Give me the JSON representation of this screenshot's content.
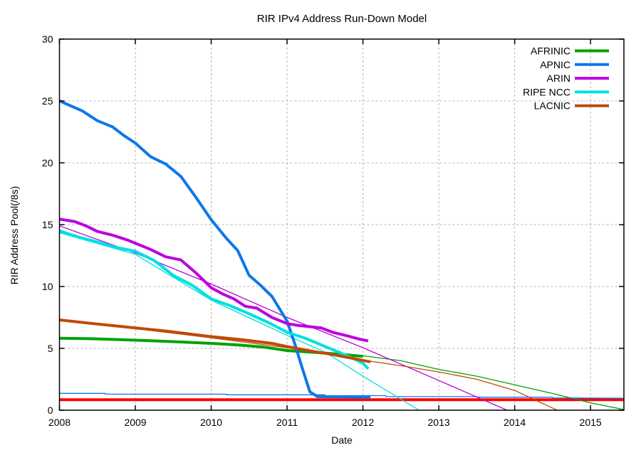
{
  "chart_data": {
    "type": "line",
    "title": "RIR IPv4 Address Run-Down Model",
    "xlabel": "Date",
    "ylabel": "RIR Address Pool(/8s)",
    "x_range": [
      2008,
      2015.44
    ],
    "y_range": [
      0,
      30
    ],
    "x_ticks": [
      2008,
      2009,
      2010,
      2011,
      2012,
      2013,
      2014,
      2015
    ],
    "y_ticks": [
      0,
      5,
      10,
      15,
      20,
      25,
      30
    ],
    "grid": true,
    "colors": {
      "afrinic": "#00a302",
      "apnic": "#0d78e8",
      "arin": "#bb00e0",
      "ripencc": "#00e0e0",
      "lacnic": "#c04a08",
      "threshold": "#ff0000",
      "grid": "#b4b4b4"
    },
    "legend": {
      "position": "top-right",
      "entries": [
        {
          "label": "AFRINIC",
          "color": "#00a302"
        },
        {
          "label": "APNIC",
          "color": "#0d78e8"
        },
        {
          "label": "ARIN",
          "color": "#bb00e0"
        },
        {
          "label": "RIPE NCC",
          "color": "#00e0e0"
        },
        {
          "label": "LACNIC",
          "color": "#c04a08"
        }
      ]
    },
    "series": [
      {
        "id": "exhaustion-threshold",
        "label": "",
        "kind": "threshold",
        "color": "#ff0000",
        "width": 4,
        "in_legend": false,
        "points": [
          [
            2008.0,
            0.85
          ],
          [
            2015.44,
            0.85
          ]
        ]
      },
      {
        "id": "afrinic-model",
        "label": "AFRINIC",
        "kind": "model",
        "color": "#00a302",
        "width": 1.3,
        "in_legend": false,
        "points": [
          [
            2008,
            5.8
          ],
          [
            2009,
            5.6
          ],
          [
            2010,
            5.35
          ],
          [
            2011,
            4.9
          ],
          [
            2012,
            4.4
          ],
          [
            2012.5,
            4.0
          ],
          [
            2013,
            3.3
          ],
          [
            2013.5,
            2.75
          ],
          [
            2014,
            2.05
          ],
          [
            2014.5,
            1.35
          ],
          [
            2015,
            0.6
          ],
          [
            2015.44,
            0.05
          ]
        ]
      },
      {
        "id": "apnic-model",
        "label": "APNIC",
        "kind": "model",
        "color": "#0d78e8",
        "width": 1.3,
        "in_legend": false,
        "points": [
          [
            2008,
            1.36
          ],
          [
            2008.6,
            1.36
          ],
          [
            2008.6,
            1.3
          ],
          [
            2010.2,
            1.3
          ],
          [
            2010.2,
            1.25
          ],
          [
            2011.5,
            1.25
          ],
          [
            2011.5,
            1.18
          ],
          [
            2012.3,
            1.18
          ],
          [
            2012.3,
            1.1
          ],
          [
            2013.5,
            1.1
          ],
          [
            2013.5,
            1.05
          ],
          [
            2014.5,
            1.05
          ],
          [
            2014.5,
            1.0
          ],
          [
            2015.44,
            0.97
          ]
        ]
      },
      {
        "id": "arin-model",
        "label": "ARIN",
        "kind": "model",
        "color": "#bb00e0",
        "width": 1.3,
        "in_legend": false,
        "points": [
          [
            2008,
            14.9
          ],
          [
            2009,
            12.7
          ],
          [
            2010,
            10.2
          ],
          [
            2011,
            7.5
          ],
          [
            2012,
            5.05
          ],
          [
            2013,
            2.4
          ],
          [
            2013.9,
            0
          ]
        ]
      },
      {
        "id": "ripencc-model",
        "label": "RIPE NCC",
        "kind": "model",
        "color": "#00e0e0",
        "width": 1.3,
        "in_legend": false,
        "points": [
          [
            2008,
            14.35
          ],
          [
            2009,
            12.6
          ],
          [
            2010,
            8.9
          ],
          [
            2011,
            6.05
          ],
          [
            2011.5,
            4.7
          ],
          [
            2012,
            2.75
          ],
          [
            2012.74,
            0
          ]
        ]
      },
      {
        "id": "lacnic-model",
        "label": "LACNIC",
        "kind": "model",
        "color": "#c04a08",
        "width": 1.3,
        "in_legend": false,
        "points": [
          [
            2008,
            7.25
          ],
          [
            2009,
            6.6
          ],
          [
            2010,
            5.85
          ],
          [
            2011,
            5.05
          ],
          [
            2012,
            4.05
          ],
          [
            2012.5,
            3.6
          ],
          [
            2013,
            3.1
          ],
          [
            2013.5,
            2.5
          ],
          [
            2014,
            1.6
          ],
          [
            2014.56,
            0
          ]
        ]
      },
      {
        "id": "afrinic-actual",
        "label": "AFRINIC",
        "kind": "actual",
        "color": "#00a302",
        "width": 4,
        "in_legend": true,
        "points": [
          [
            2008.0,
            5.82
          ],
          [
            2008.4,
            5.78
          ],
          [
            2008.8,
            5.7
          ],
          [
            2009.2,
            5.62
          ],
          [
            2009.6,
            5.52
          ],
          [
            2010.0,
            5.4
          ],
          [
            2010.35,
            5.28
          ],
          [
            2010.7,
            5.1
          ],
          [
            2011.0,
            4.82
          ],
          [
            2011.25,
            4.72
          ],
          [
            2011.5,
            4.62
          ],
          [
            2011.75,
            4.5
          ],
          [
            2012.0,
            4.35
          ]
        ]
      },
      {
        "id": "apnic-actual",
        "label": "APNIC",
        "kind": "actual",
        "color": "#0d78e8",
        "width": 4,
        "in_legend": true,
        "points": [
          [
            2008.0,
            25.0
          ],
          [
            2008.15,
            24.6
          ],
          [
            2008.3,
            24.2
          ],
          [
            2008.5,
            23.4
          ],
          [
            2008.7,
            22.9
          ],
          [
            2008.85,
            22.2
          ],
          [
            2009.0,
            21.6
          ],
          [
            2009.2,
            20.5
          ],
          [
            2009.4,
            19.9
          ],
          [
            2009.6,
            18.9
          ],
          [
            2009.8,
            17.2
          ],
          [
            2010.0,
            15.4
          ],
          [
            2010.2,
            13.9
          ],
          [
            2010.35,
            12.9
          ],
          [
            2010.5,
            10.9
          ],
          [
            2010.65,
            10.1
          ],
          [
            2010.8,
            9.2
          ],
          [
            2011.0,
            7.2
          ],
          [
            2011.1,
            5.4
          ],
          [
            2011.2,
            3.4
          ],
          [
            2011.3,
            1.5
          ],
          [
            2011.4,
            1.1
          ],
          [
            2012.1,
            1.05
          ]
        ]
      },
      {
        "id": "arin-actual",
        "label": "ARIN",
        "kind": "actual",
        "color": "#bb00e0",
        "width": 4,
        "in_legend": true,
        "points": [
          [
            2008.0,
            15.45
          ],
          [
            2008.2,
            15.25
          ],
          [
            2008.35,
            14.9
          ],
          [
            2008.5,
            14.45
          ],
          [
            2008.7,
            14.15
          ],
          [
            2008.9,
            13.75
          ],
          [
            2009.0,
            13.5
          ],
          [
            2009.2,
            13.0
          ],
          [
            2009.4,
            12.4
          ],
          [
            2009.6,
            12.15
          ],
          [
            2009.8,
            11.1
          ],
          [
            2010.0,
            9.9
          ],
          [
            2010.15,
            9.4
          ],
          [
            2010.3,
            9.0
          ],
          [
            2010.45,
            8.4
          ],
          [
            2010.6,
            8.25
          ],
          [
            2010.8,
            7.5
          ],
          [
            2011.0,
            7.0
          ],
          [
            2011.15,
            6.85
          ],
          [
            2011.45,
            6.65
          ],
          [
            2011.6,
            6.3
          ],
          [
            2011.8,
            6.0
          ],
          [
            2011.95,
            5.75
          ],
          [
            2012.07,
            5.6
          ]
        ]
      },
      {
        "id": "ripencc-actual",
        "label": "RIPE NCC",
        "kind": "actual",
        "color": "#00e0e0",
        "width": 4,
        "in_legend": true,
        "points": [
          [
            2008.0,
            14.5
          ],
          [
            2008.25,
            14.0
          ],
          [
            2008.5,
            13.6
          ],
          [
            2008.75,
            13.15
          ],
          [
            2009.0,
            12.85
          ],
          [
            2009.25,
            12.1
          ],
          [
            2009.5,
            10.9
          ],
          [
            2009.75,
            10.1
          ],
          [
            2010.0,
            9.0
          ],
          [
            2010.25,
            8.45
          ],
          [
            2010.5,
            7.8
          ],
          [
            2010.75,
            7.1
          ],
          [
            2011.0,
            6.3
          ],
          [
            2011.25,
            5.8
          ],
          [
            2011.5,
            5.15
          ],
          [
            2011.7,
            4.65
          ],
          [
            2011.9,
            4.1
          ],
          [
            2012.0,
            3.8
          ],
          [
            2012.07,
            3.35
          ]
        ]
      },
      {
        "id": "lacnic-actual",
        "label": "LACNIC",
        "kind": "actual",
        "color": "#c04a08",
        "width": 4,
        "in_legend": true,
        "points": [
          [
            2008.0,
            7.3
          ],
          [
            2008.3,
            7.1
          ],
          [
            2008.6,
            6.9
          ],
          [
            2009.0,
            6.65
          ],
          [
            2009.4,
            6.4
          ],
          [
            2009.8,
            6.1
          ],
          [
            2010.0,
            5.95
          ],
          [
            2010.4,
            5.7
          ],
          [
            2010.8,
            5.4
          ],
          [
            2011.0,
            5.15
          ],
          [
            2011.3,
            4.8
          ],
          [
            2011.6,
            4.5
          ],
          [
            2011.9,
            4.15
          ],
          [
            2012.1,
            3.9
          ]
        ]
      }
    ]
  }
}
